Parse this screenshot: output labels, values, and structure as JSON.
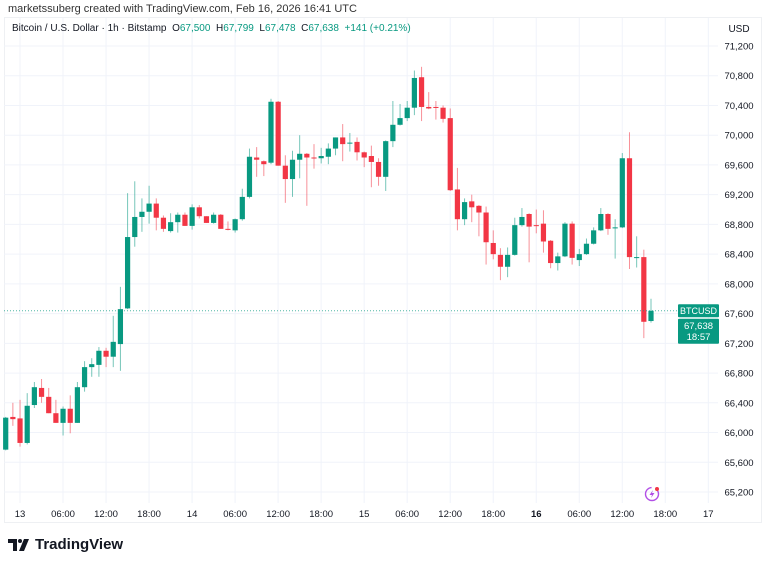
{
  "credit": "marketssuberg created with TradingView.com, Feb 16, 2026 16:41 UTC",
  "legend": {
    "symbol": "Bitcoin / U.S. Dollar · 1h · Bitstamp",
    "o_label": "O",
    "o": "67,500",
    "h_label": "H",
    "h": "67,799",
    "l_label": "L",
    "l": "67,478",
    "c_label": "C",
    "c": "67,638",
    "change": "+141 (+0.21%)"
  },
  "currency": "USD",
  "last_price": {
    "ticker": "BTCUSD",
    "price": "67,638",
    "countdown": "18:57"
  },
  "brand": "TradingView",
  "icons": {
    "alert": "lightning-icon",
    "logo": "tradingview-logo"
  },
  "colors": {
    "up": "#089981",
    "down": "#f23645",
    "grid": "#f0f3fa",
    "alert": "#b24fe6"
  },
  "chart_data": {
    "type": "candlestick",
    "title": "Bitcoin / U.S. Dollar · 1h · Bitstamp",
    "interval": "1h",
    "ylim": [
      65000,
      71400
    ],
    "y_ticks": [
      71200,
      70800,
      70400,
      70000,
      69600,
      69200,
      68800,
      68400,
      68000,
      67600,
      67200,
      66800,
      66400,
      66000,
      65600,
      65200
    ],
    "y_tick_labels": [
      "71,200",
      "70,800",
      "70,400",
      "70,000",
      "69,600",
      "69,200",
      "68,800",
      "68,400",
      "68,000",
      "67,600",
      "67,200",
      "66,800",
      "66,400",
      "66,000",
      "65,600",
      "65,200"
    ],
    "x_tick_labels": [
      "13",
      "06:00",
      "12:00",
      "18:00",
      "14",
      "06:00",
      "12:00",
      "18:00",
      "15",
      "06:00",
      "12:00",
      "18:00",
      "16",
      "06:00",
      "12:00",
      "18:00",
      "17"
    ],
    "x_tick_bold": "16",
    "grid": true,
    "last_price": 67638,
    "ohlc": [
      [
        65770,
        66210,
        65760,
        66200
      ],
      [
        66210,
        66400,
        66090,
        66180
      ],
      [
        66190,
        66440,
        65810,
        65860
      ],
      [
        65860,
        66530,
        65840,
        66360
      ],
      [
        66370,
        66680,
        66330,
        66610
      ],
      [
        66600,
        66720,
        66400,
        66480
      ],
      [
        66480,
        66600,
        66260,
        66260
      ],
      [
        66260,
        66440,
        66130,
        66130
      ],
      [
        66130,
        66350,
        65960,
        66320
      ],
      [
        66320,
        66500,
        65990,
        66130
      ],
      [
        66130,
        66680,
        66130,
        66610
      ],
      [
        66610,
        66960,
        66550,
        66880
      ],
      [
        66880,
        67000,
        66750,
        66920
      ],
      [
        66910,
        67150,
        66750,
        67100
      ],
      [
        67100,
        67140,
        66880,
        67020
      ],
      [
        67020,
        67570,
        66880,
        67220
      ],
      [
        67190,
        67960,
        66830,
        67660
      ],
      [
        67670,
        69220,
        67660,
        68630
      ],
      [
        68630,
        69380,
        68500,
        68900
      ],
      [
        68900,
        69150,
        68700,
        68970
      ],
      [
        68970,
        69320,
        68810,
        69080
      ],
      [
        69080,
        69150,
        68720,
        68890
      ],
      [
        68890,
        68920,
        68700,
        68740
      ],
      [
        68710,
        68950,
        68690,
        68830
      ],
      [
        68830,
        68960,
        68690,
        68930
      ],
      [
        68930,
        68960,
        68780,
        68780
      ],
      [
        68780,
        69070,
        68730,
        69030
      ],
      [
        69030,
        69060,
        68880,
        68910
      ],
      [
        68910,
        68910,
        68820,
        68820
      ],
      [
        68820,
        68960,
        68810,
        68930
      ],
      [
        68930,
        68940,
        68740,
        68740
      ],
      [
        68740,
        68840,
        68720,
        68730
      ],
      [
        68720,
        68880,
        68690,
        68870
      ],
      [
        68870,
        69280,
        68850,
        69170
      ],
      [
        69170,
        69820,
        69150,
        69710
      ],
      [
        69700,
        69840,
        69440,
        69670
      ],
      [
        69650,
        69660,
        69450,
        69610
      ],
      [
        69630,
        70490,
        69610,
        70450
      ],
      [
        70450,
        70460,
        69590,
        69590
      ],
      [
        69590,
        69730,
        69090,
        69410
      ],
      [
        69410,
        69790,
        69170,
        69670
      ],
      [
        69670,
        70000,
        69420,
        69750
      ],
      [
        69750,
        69760,
        69050,
        69700
      ],
      [
        69700,
        69880,
        69550,
        69690
      ],
      [
        69690,
        69830,
        69620,
        69720
      ],
      [
        69710,
        69890,
        69610,
        69820
      ],
      [
        69820,
        69970,
        69730,
        69970
      ],
      [
        69970,
        70150,
        69650,
        69880
      ],
      [
        69890,
        70030,
        69780,
        69900
      ],
      [
        69910,
        69970,
        69660,
        69770
      ],
      [
        69770,
        69780,
        69570,
        69700
      ],
      [
        69720,
        69860,
        69300,
        69640
      ],
      [
        69640,
        69690,
        69320,
        69440
      ],
      [
        69440,
        69930,
        69250,
        69920
      ],
      [
        69920,
        70460,
        69840,
        70140
      ],
      [
        70140,
        70420,
        70130,
        70230
      ],
      [
        70230,
        70460,
        70190,
        70370
      ],
      [
        70370,
        70870,
        70270,
        70770
      ],
      [
        70780,
        70920,
        70190,
        70380
      ],
      [
        70380,
        70580,
        70350,
        70360
      ],
      [
        70380,
        70460,
        70210,
        70370
      ],
      [
        70370,
        70400,
        70170,
        70220
      ],
      [
        70230,
        70360,
        69250,
        69260
      ],
      [
        69270,
        69560,
        68720,
        68870
      ],
      [
        68870,
        69150,
        68790,
        69100
      ],
      [
        69110,
        69200,
        68830,
        69030
      ],
      [
        69050,
        69060,
        68640,
        68960
      ],
      [
        68960,
        69040,
        68260,
        68560
      ],
      [
        68550,
        68720,
        68330,
        68400
      ],
      [
        68390,
        68480,
        68050,
        68230
      ],
      [
        68230,
        68490,
        68090,
        68390
      ],
      [
        68390,
        68890,
        68380,
        68790
      ],
      [
        68790,
        69020,
        68770,
        68900
      ],
      [
        68940,
        68950,
        68290,
        68770
      ],
      [
        68790,
        69000,
        68680,
        68780
      ],
      [
        68810,
        68990,
        68420,
        68570
      ],
      [
        68580,
        68590,
        68210,
        68280
      ],
      [
        68280,
        68420,
        68180,
        68370
      ],
      [
        68370,
        68830,
        68360,
        68810
      ],
      [
        68810,
        68840,
        68260,
        68350
      ],
      [
        68320,
        68470,
        68240,
        68400
      ],
      [
        68400,
        68610,
        68390,
        68540
      ],
      [
        68540,
        68760,
        68530,
        68720
      ],
      [
        68720,
        69020,
        68710,
        68940
      ],
      [
        68940,
        68950,
        68660,
        68740
      ],
      [
        68750,
        68870,
        68340,
        68760
      ],
      [
        68760,
        69760,
        68750,
        69690
      ],
      [
        69690,
        70040,
        68200,
        68360
      ],
      [
        68350,
        68640,
        68220,
        68360
      ],
      [
        68360,
        68460,
        67270,
        67490
      ],
      [
        67500,
        67799,
        67478,
        67638
      ]
    ]
  }
}
